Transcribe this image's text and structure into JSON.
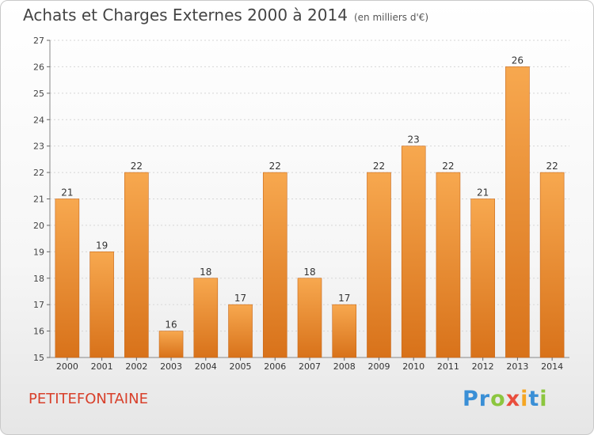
{
  "header": {
    "title": "Achats et Charges Externes 2000 à 2014",
    "unit": "(en milliers d'€)"
  },
  "footer": {
    "place": "PETITEFONTAINE",
    "brand_letters": [
      {
        "char": "P",
        "color": "#3a8fd6"
      },
      {
        "char": "r",
        "color": "#3a8fd6"
      },
      {
        "char": "o",
        "color": "#8cc63f"
      },
      {
        "char": "x",
        "color": "#e94e3d"
      },
      {
        "char": "i",
        "color": "#f5a623"
      },
      {
        "char": "t",
        "color": "#3a8fd6"
      },
      {
        "char": "i",
        "color": "#8cc63f"
      }
    ]
  },
  "colors": {
    "bar_top": "#f7a84f",
    "bar_bottom": "#d8721a",
    "accent": "#d8402b"
  },
  "chart_data": {
    "type": "bar",
    "title": "Achats et Charges Externes 2000 à 2014",
    "categories": [
      "2000",
      "2001",
      "2002",
      "2003",
      "2004",
      "2005",
      "2006",
      "2007",
      "2008",
      "2009",
      "2010",
      "2011",
      "2012",
      "2013",
      "2014"
    ],
    "values": [
      21,
      19,
      22,
      16,
      18,
      17,
      22,
      18,
      17,
      22,
      23,
      22,
      21,
      26,
      22
    ],
    "ylim": [
      15,
      27
    ],
    "yticks": [
      15,
      16,
      17,
      18,
      19,
      20,
      21,
      22,
      23,
      24,
      25,
      26,
      27
    ],
    "grid": true
  }
}
